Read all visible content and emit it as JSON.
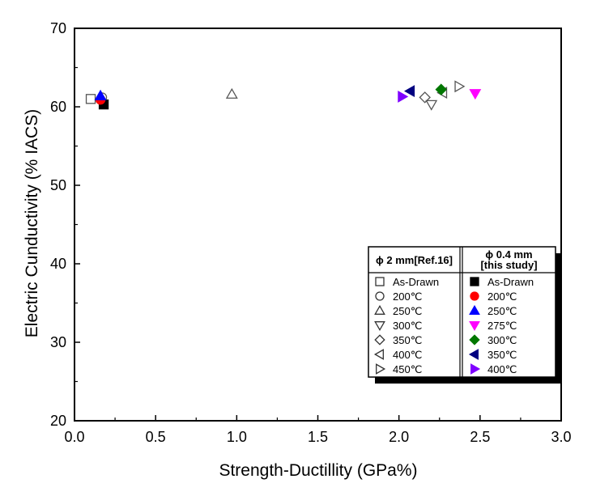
{
  "chart_data": {
    "type": "scatter",
    "xlabel": "Strength-Ductillity (GPa%)",
    "ylabel": "Electric Cunductivity (% IACS)",
    "xlim": [
      0.0,
      3.0
    ],
    "ylim": [
      20,
      70
    ],
    "xticks": [
      "0.0",
      "0.5",
      "1.0",
      "1.5",
      "2.0",
      "2.5",
      "3.0"
    ],
    "yticks": [
      "20",
      "30",
      "40",
      "50",
      "60",
      "70"
    ],
    "legend_placement": "bottom-right",
    "grid": false,
    "groups": [
      {
        "title": "ϕ 2 mm[Ref.16]",
        "title_lines": [
          "ϕ 2 mm[Ref.16]"
        ],
        "filled": false,
        "series": [
          {
            "name": "As-Drawn",
            "marker": "square",
            "color": "#555555",
            "x": 0.1,
            "y": 61.0
          },
          {
            "name": "200℃",
            "marker": "circle",
            "color": "#555555",
            "x": 0.17,
            "y": 61.2
          },
          {
            "name": "250℃",
            "marker": "triangle-up",
            "color": "#555555",
            "x": 0.97,
            "y": 61.6
          },
          {
            "name": "300℃",
            "marker": "triangle-down",
            "color": "#555555",
            "x": 2.2,
            "y": 60.3
          },
          {
            "name": "350℃",
            "marker": "diamond",
            "color": "#555555",
            "x": 2.16,
            "y": 61.2
          },
          {
            "name": "400℃",
            "marker": "triangle-left",
            "color": "#555555",
            "x": 2.27,
            "y": 61.8
          },
          {
            "name": "450℃",
            "marker": "triangle-right",
            "color": "#555555",
            "x": 2.37,
            "y": 62.6
          }
        ]
      },
      {
        "title": "ϕ 0.4 mm [this study]",
        "title_lines": [
          "ϕ 0.4 mm",
          "[this study]"
        ],
        "filled": true,
        "series": [
          {
            "name": "As-Drawn",
            "marker": "square",
            "color": "#000000",
            "x": 0.18,
            "y": 60.3
          },
          {
            "name": "200℃",
            "marker": "circle",
            "color": "#ff0000",
            "x": 0.16,
            "y": 60.9
          },
          {
            "name": "250℃",
            "marker": "triangle-up",
            "color": "#0000ff",
            "x": 0.16,
            "y": 61.4
          },
          {
            "name": "275℃",
            "marker": "triangle-down",
            "color": "#ff00ff",
            "x": 2.47,
            "y": 61.7
          },
          {
            "name": "300℃",
            "marker": "diamond",
            "color": "#007700",
            "x": 2.26,
            "y": 62.2
          },
          {
            "name": "350℃",
            "marker": "triangle-left",
            "color": "#000080",
            "x": 2.07,
            "y": 62.0
          },
          {
            "name": "400℃",
            "marker": "triangle-right",
            "color": "#7f00ff",
            "x": 2.02,
            "y": 61.3
          }
        ]
      }
    ]
  }
}
